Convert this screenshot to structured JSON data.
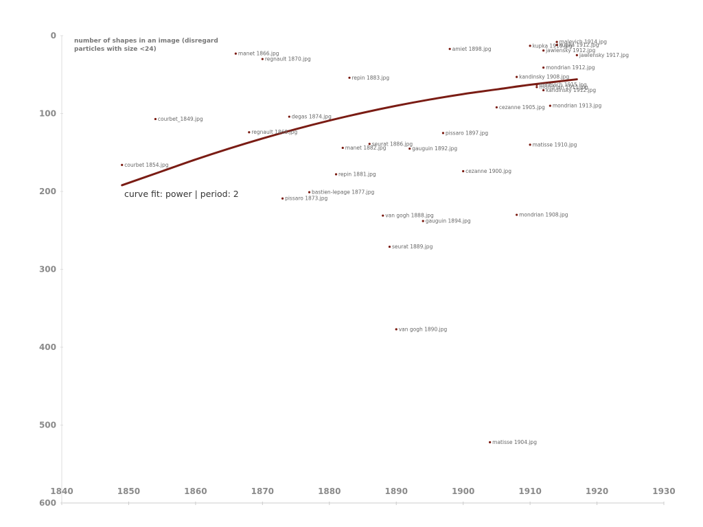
{
  "chart_data": {
    "type": "scatter",
    "ylabel_lines": [
      "number of shapes in an image (disregard",
      "particles with size <24)"
    ],
    "xlim": [
      1840,
      1930
    ],
    "ylim": [
      600,
      0
    ],
    "x_ticks": [
      1840,
      1850,
      1860,
      1870,
      1880,
      1890,
      1900,
      1910,
      1920,
      1930
    ],
    "y_ticks": [
      0,
      100,
      200,
      300,
      400,
      500,
      600
    ],
    "grid": false,
    "annotation": "curve fit: power | period: 2",
    "colors": {
      "point": "#7a1a10",
      "curve": "#7a1c14",
      "axis": "#cccccc"
    },
    "trend": {
      "x": [
        1849,
        1855,
        1860,
        1865,
        1870,
        1875,
        1880,
        1885,
        1890,
        1895,
        1900,
        1905,
        1910,
        1917
      ],
      "y": [
        192,
        174,
        159,
        145,
        132,
        120,
        109,
        99,
        90,
        82,
        75,
        69,
        63,
        56
      ]
    },
    "points": [
      {
        "x": 1849,
        "y": 166,
        "label": "courbet 1854.jpg"
      },
      {
        "x": 1854,
        "y": 107,
        "label": "courbet_1849.jpg"
      },
      {
        "x": 1866,
        "y": 23,
        "label": "manet 1866.jpg"
      },
      {
        "x": 1870,
        "y": 30,
        "label": "regnault 1870.jpg"
      },
      {
        "x": 1868,
        "y": 124,
        "label": "regnault 1868.jpg"
      },
      {
        "x": 1874,
        "y": 104,
        "label": "degas 1874.jpg"
      },
      {
        "x": 1873,
        "y": 209,
        "label": "pissaro 1873.jpg"
      },
      {
        "x": 1877,
        "y": 201,
        "label": "bastien-lepage 1877.jpg"
      },
      {
        "x": 1881,
        "y": 178,
        "label": "repin 1881.jpg"
      },
      {
        "x": 1882,
        "y": 144,
        "label": "manet 1882.jpg"
      },
      {
        "x": 1883,
        "y": 54,
        "label": "repin 1883.jpg"
      },
      {
        "x": 1886,
        "y": 139,
        "label": "seurat 1886.jpg"
      },
      {
        "x": 1888,
        "y": 231,
        "label": "van gogh 1888.jpg"
      },
      {
        "x": 1889,
        "y": 271,
        "label": "seurat 1889.jpg"
      },
      {
        "x": 1890,
        "y": 377,
        "label": "van gogh 1890.jpg"
      },
      {
        "x": 1892,
        "y": 145,
        "label": "gauguin 1892.jpg"
      },
      {
        "x": 1894,
        "y": 238,
        "label": "gauguin 1894.jpg"
      },
      {
        "x": 1897,
        "y": 125,
        "label": "pissaro 1897.jpg"
      },
      {
        "x": 1898,
        "y": 17,
        "label": "amiet 1898.jpg"
      },
      {
        "x": 1900,
        "y": 174,
        "label": "cezanne 1900.jpg"
      },
      {
        "x": 1904,
        "y": 522,
        "label": "matisse 1904.jpg"
      },
      {
        "x": 1905,
        "y": 92,
        "label": "cezanne 1905.jpg"
      },
      {
        "x": 1908,
        "y": 53,
        "label": "kandinsky 1908.jpg"
      },
      {
        "x": 1908,
        "y": 230,
        "label": "mondrian 1908.jpg"
      },
      {
        "x": 1910,
        "y": 13,
        "label": "kupka 1910.jpg"
      },
      {
        "x": 1910,
        "y": 140,
        "label": "matisse 1910.jpg"
      },
      {
        "x": 1911,
        "y": 63,
        "label": "malevich 1915.jpg"
      },
      {
        "x": 1911,
        "y": 66,
        "label": "mondrian 1911.jpg"
      },
      {
        "x": 1912,
        "y": 19,
        "label": "jawlensky 1912.jpg"
      },
      {
        "x": 1912,
        "y": 41,
        "label": "mondrian 1912.jpg"
      },
      {
        "x": 1912,
        "y": 70,
        "label": "kandinsky 1912.jpg"
      },
      {
        "x": 1913,
        "y": 90,
        "label": "mondrian 1913.jpg"
      },
      {
        "x": 1914,
        "y": 8,
        "label": "malevich 1914.jpg"
      },
      {
        "x": 1914,
        "y": 12,
        "label": "kupka 1912.jpg"
      },
      {
        "x": 1917,
        "y": 25,
        "label": "jawlensky 1917.jpg"
      }
    ]
  }
}
